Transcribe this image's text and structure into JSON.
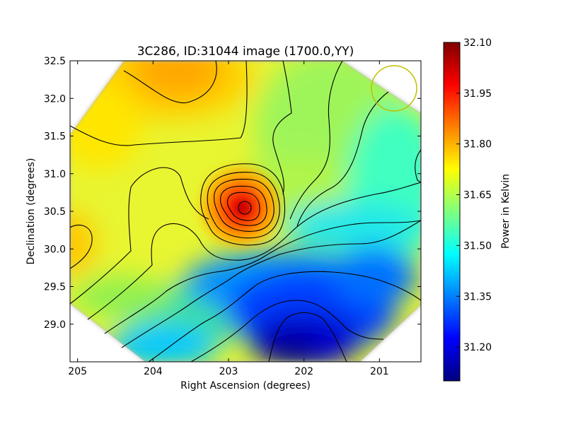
{
  "chart_data": {
    "type": "heatmap",
    "title": "3C286, ID:31044 image (1700.0,YY)",
    "xlabel": "Right Ascension (degrees)",
    "ylabel": "Declination (degrees)",
    "xlim": [
      205.1,
      200.45
    ],
    "ylim": [
      28.5,
      32.5
    ],
    "x_ticks": [
      205,
      204,
      203,
      202,
      201
    ],
    "y_ticks": [
      29.0,
      29.5,
      30.0,
      30.5,
      31.0,
      31.5,
      32.0,
      32.5
    ],
    "x_tick_labels": [
      "205",
      "204",
      "203",
      "202",
      "201"
    ],
    "y_tick_labels": [
      "29.0",
      "29.5",
      "30.0",
      "30.5",
      "31.0",
      "31.5",
      "32.0",
      "32.5"
    ],
    "grid": false,
    "colormap": "jet",
    "colorbar": {
      "label": "Power in Kelvin",
      "range": [
        31.1,
        32.1
      ],
      "ticks": [
        32.1,
        31.95,
        31.8,
        31.65,
        31.5,
        31.35,
        31.2
      ],
      "tick_labels": [
        "32.10",
        "31.95",
        "31.80",
        "31.65",
        "31.50",
        "31.35",
        "31.20"
      ]
    },
    "features": [
      {
        "kind": "peak",
        "ra": 202.78,
        "dec": 30.55,
        "value": 32.05
      },
      {
        "kind": "minimum",
        "ra": 202.0,
        "dec": 28.8,
        "value": 31.12
      },
      {
        "kind": "high-region",
        "ra": 203.7,
        "dec": 32.3,
        "value": 31.85
      },
      {
        "kind": "high-region",
        "ra": 205.1,
        "dec": 30.05,
        "value": 31.8
      }
    ],
    "beam_circle": {
      "ra": 200.85,
      "dec": 32.14,
      "radius_deg": 0.3,
      "color": "#bfbf00"
    }
  }
}
